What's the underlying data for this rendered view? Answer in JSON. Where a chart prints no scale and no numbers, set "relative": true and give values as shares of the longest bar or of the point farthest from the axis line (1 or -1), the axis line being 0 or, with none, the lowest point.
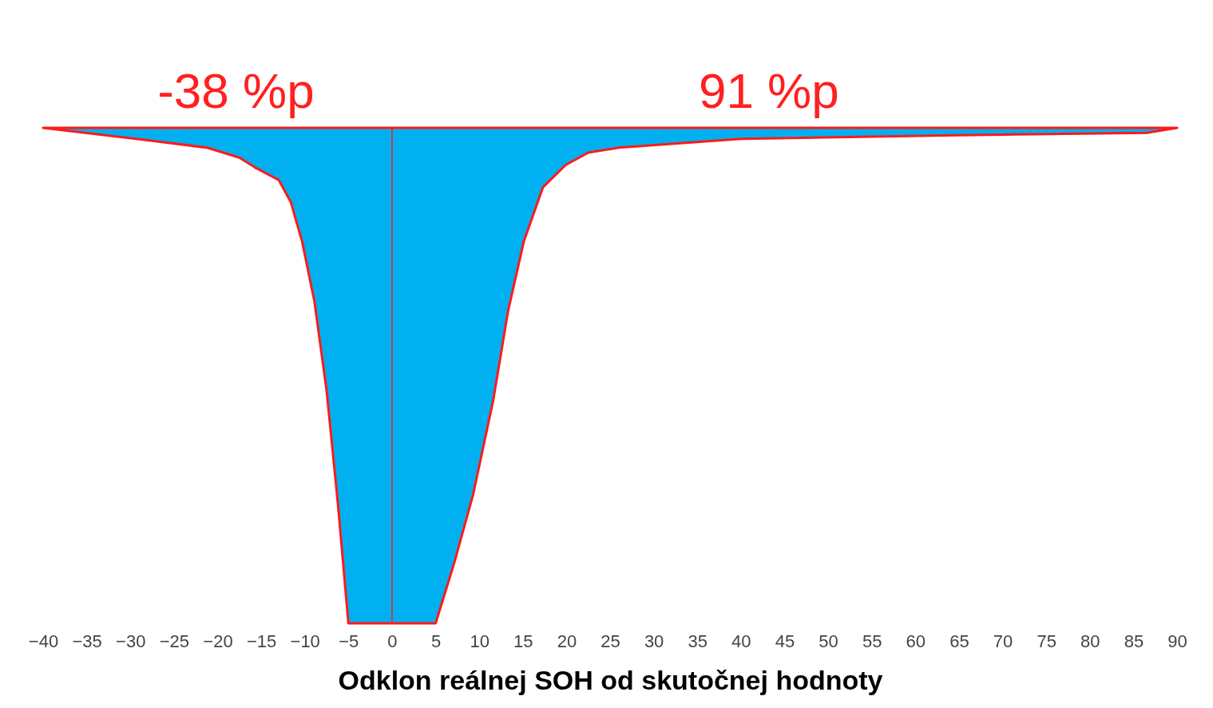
{
  "chart_data": {
    "type": "area",
    "relative": true,
    "xlabel": "Odklon reálnej SOH od skutočnej hodnoty",
    "annotations": [
      "-38 %p",
      "91 %p"
    ],
    "x": [
      -40,
      -30.3,
      -28,
      -21.2,
      -17.5,
      -15.7,
      -13,
      -11.6,
      -10.3,
      -8.9,
      -7.5,
      -6.2,
      -5,
      5,
      7.1,
      9.3,
      11.6,
      13.3,
      15.1,
      17.3,
      19.9,
      22.5,
      26,
      40,
      64.7,
      86.5,
      90
    ],
    "series": [
      {
        "color": "#00b0f0",
        "values": [
          0,
          -0.02,
          -0.025,
          -0.04,
          -0.06,
          -0.08,
          -0.105,
          -0.15,
          -0.23,
          -0.35,
          -0.53,
          -0.76,
          -1,
          -1,
          -0.88,
          -0.74,
          -0.55,
          -0.37,
          -0.23,
          -0.12,
          -0.075,
          -0.05,
          -0.04,
          -0.022,
          -0.015,
          -0.01,
          0
        ]
      }
    ],
    "xlim": [
      -40,
      90
    ],
    "xticks": [
      -40,
      -35,
      -30,
      -25,
      -20,
      -15,
      -10,
      -5,
      0,
      5,
      10,
      15,
      20,
      25,
      30,
      35,
      40,
      45,
      50,
      55,
      60,
      65,
      70,
      75,
      80,
      85,
      90
    ],
    "ref_lines": [
      {
        "axis": "x",
        "value": 0,
        "color": "#ff1a1a"
      }
    ]
  }
}
